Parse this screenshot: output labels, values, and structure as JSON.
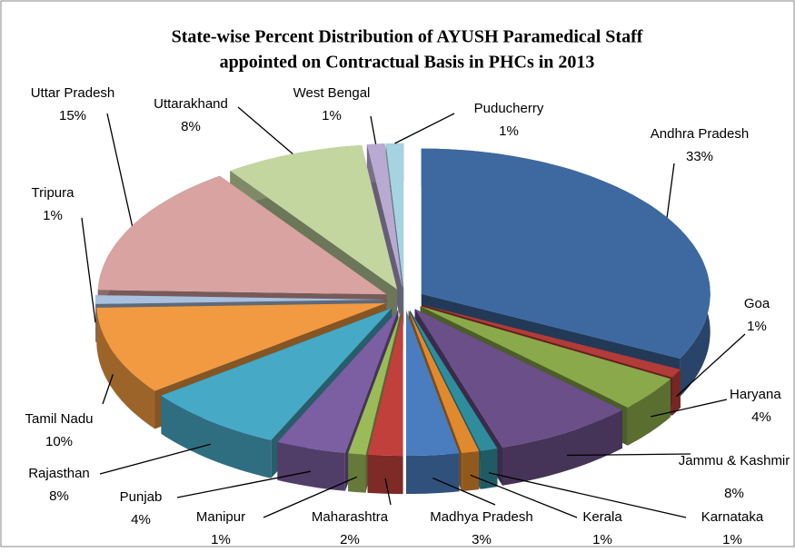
{
  "chart_data": {
    "type": "pie3d",
    "title": [
      "State-wise Percent Distribution of AYUSH Paramedical Staff",
      "appointed on Contractual Basis in PHCs in 2013"
    ],
    "categories": [
      "Andhra Pradesh",
      "Goa",
      "Haryana",
      "Jammu & Kashmir",
      "Karnataka",
      "Kerala",
      "Madhya Pradesh",
      "Maharashtra",
      "Manipur",
      "Punjab",
      "Rajasthan",
      "Tamil Nadu",
      "Tripura",
      "Uttar Pradesh",
      "Uttarakhand",
      "West Bengal",
      "Puducherry"
    ],
    "values": [
      33,
      1,
      4,
      8,
      1,
      1,
      3,
      2,
      1,
      4,
      8,
      10,
      1,
      15,
      8,
      1,
      1
    ],
    "value_labels": [
      "33%",
      "1%",
      "4%",
      "8%",
      "1%",
      "1%",
      "3%",
      "2%",
      "1%",
      "4%",
      "8%",
      "10%",
      "1%",
      "15%",
      "8%",
      "1%",
      "1%"
    ],
    "colors": [
      "#3d69a0",
      "#b23c38",
      "#8aa94a",
      "#6a4f88",
      "#2f8c9c",
      "#e0892f",
      "#4a7dbf",
      "#c2403c",
      "#9bbb59",
      "#7b5fa2",
      "#46a9c5",
      "#f29a41",
      "#a9c0de",
      "#d9a3a2",
      "#c4d6a0",
      "#b9aad2",
      "#a7d2e0"
    ]
  }
}
